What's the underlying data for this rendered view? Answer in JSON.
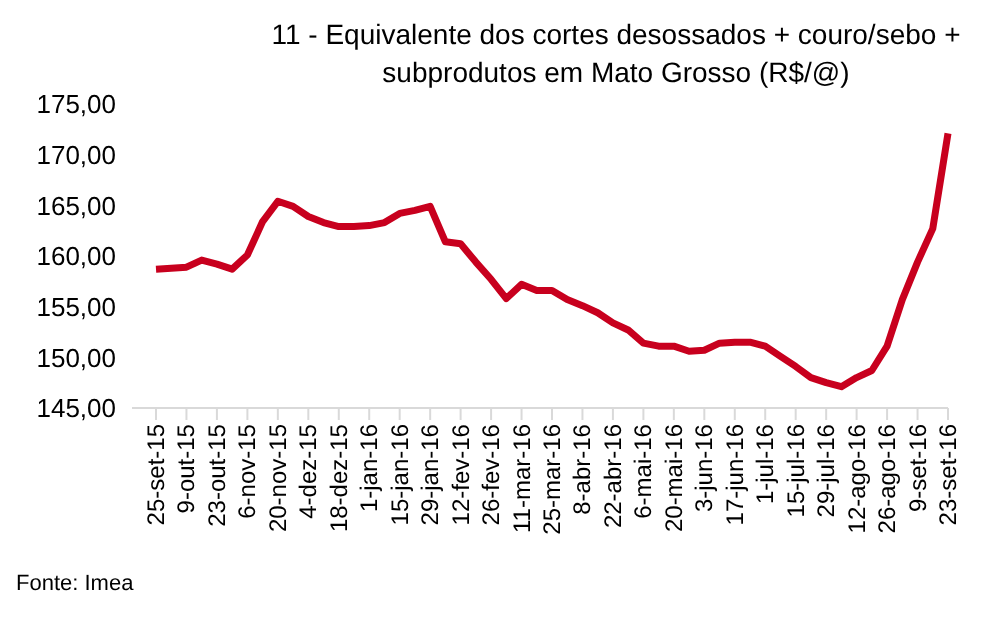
{
  "chart_data": {
    "type": "line",
    "title": "11 - Equivalente dos cortes desossados + couro/sebo + subprodutos em Mato Grosso (R$/@)",
    "categories": [
      "25-set-15",
      null,
      "9-out-15",
      null,
      "23-out-15",
      null,
      "6-nov-15",
      null,
      "20-nov-15",
      null,
      "4-dez-15",
      null,
      "18-dez-15",
      null,
      "1-jan-16",
      null,
      "15-jan-16",
      null,
      "29-jan-16",
      null,
      "12-fev-16",
      null,
      "26-fev-16",
      null,
      "11-mar-16",
      null,
      "25-mar-16",
      null,
      "8-abr-16",
      null,
      "22-abr-16",
      null,
      "6-mai-16",
      null,
      "20-mai-16",
      null,
      "3-jun-16",
      null,
      "17-jun-16",
      null,
      "1-jul-16",
      null,
      "15-jul-16",
      null,
      "29-jul-16",
      null,
      "12-ago-16",
      null,
      "26-ago-16",
      null,
      "9-set-16",
      null,
      "23-set-16"
    ],
    "series": [
      {
        "color": "#c8001e",
        "values": [
          158.7,
          158.8,
          158.9,
          159.6,
          159.2,
          158.7,
          160.1,
          163.4,
          165.4,
          164.9,
          163.9,
          163.3,
          162.9,
          162.9,
          163.0,
          163.3,
          164.2,
          164.5,
          164.9,
          161.4,
          161.2,
          159.4,
          157.7,
          155.8,
          157.2,
          156.6,
          156.6,
          155.7,
          155.1,
          154.4,
          153.4,
          152.7,
          151.4,
          151.1,
          151.1,
          150.6,
          150.7,
          151.4,
          151.5,
          151.5,
          151.1,
          150.1,
          149.1,
          148.0,
          147.5,
          147.1,
          148.0,
          148.7,
          151.1,
          155.7,
          159.4,
          162.7,
          172.1
        ]
      }
    ],
    "ylim": [
      145,
      175
    ],
    "yticks": [
      {
        "value": 145,
        "label": "145,00"
      },
      {
        "value": 150,
        "label": "150,00"
      },
      {
        "value": 155,
        "label": "155,00"
      },
      {
        "value": 160,
        "label": "160,00"
      },
      {
        "value": 165,
        "label": "165,00"
      },
      {
        "value": 170,
        "label": "170,00"
      },
      {
        "value": 175,
        "label": "175,00"
      }
    ],
    "grid": false,
    "legend": false,
    "marker": "none",
    "line_style": "solid",
    "annotations": [
      "Fonte: Imea"
    ]
  }
}
